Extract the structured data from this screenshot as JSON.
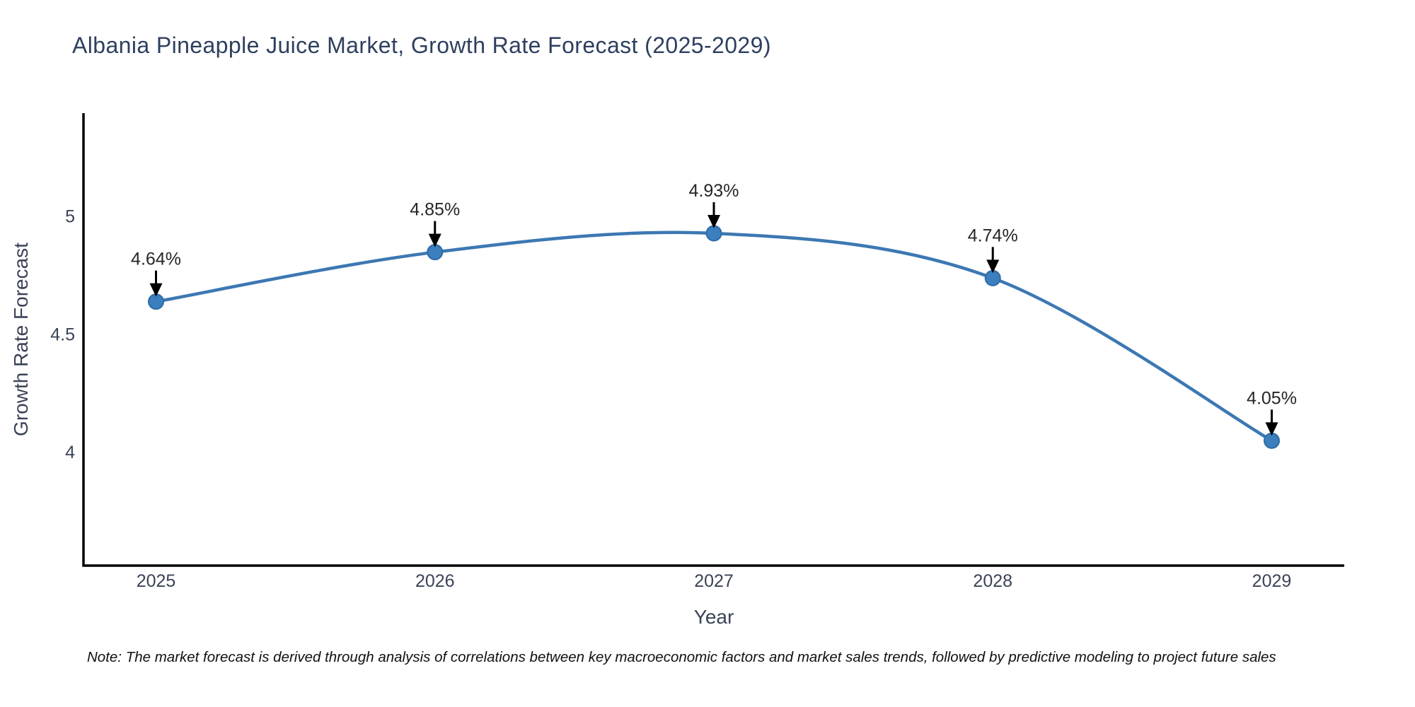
{
  "header": {
    "title": "Albania Pineapple Juice Market, Growth Rate Forecast (2025-2029)"
  },
  "chart_data": {
    "type": "line",
    "x": [
      2025,
      2026,
      2027,
      2028,
      2029
    ],
    "values": [
      4.64,
      4.85,
      4.93,
      4.74,
      4.05
    ],
    "point_labels": [
      "4.64%",
      "4.85%",
      "4.93%",
      "4.74%",
      "4.05%"
    ],
    "title": "Albania Pineapple Juice Market, Growth Rate Forecast (2025-2029)",
    "xlabel": "Year",
    "ylabel": "Growth Rate Forecast",
    "xticks": [
      "2025",
      "2026",
      "2027",
      "2028",
      "2029"
    ],
    "yticks": [
      {
        "value": 5,
        "label": "5"
      },
      {
        "value": 4.5,
        "label": "4.5"
      },
      {
        "value": 4,
        "label": "4"
      }
    ],
    "xlim": [
      2024.74,
      2029.26
    ],
    "ylim": [
      3.52,
      5.44
    ],
    "grid": false,
    "legend": "none",
    "marker": "circle",
    "annotation_style": "value labels with black down-arrows above each point"
  },
  "footnote": "Note: The market forecast is derived through analysis of correlations between key macroeconomic factors and market sales trends, followed by predictive modeling to project future sales",
  "colors": {
    "line": "#3c78b3",
    "marker_fill": "#3c7fbe",
    "marker_edge": "#2e6ba6",
    "axis": "#000000",
    "tick_text": "#3b4357",
    "title_text": "#2e3f5f",
    "annotation_text": "#262626",
    "footnote_text": "#111111",
    "arrow": "#000000",
    "background": "#ffffff"
  }
}
